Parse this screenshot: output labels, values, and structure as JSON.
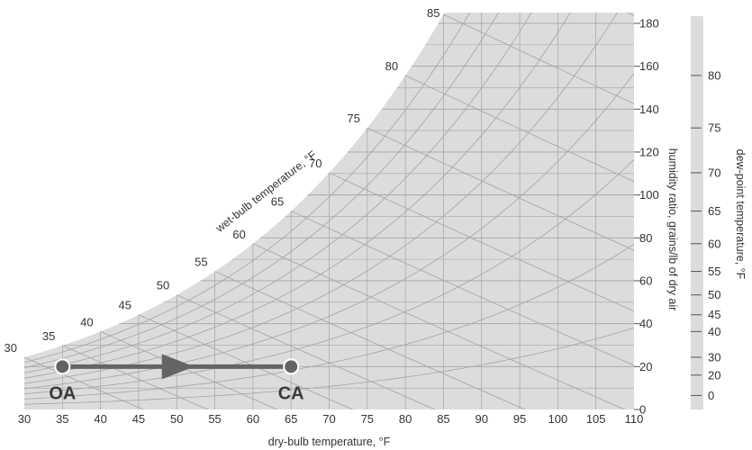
{
  "chart_data": {
    "type": "psychrometric",
    "xlabel": "dry-bulb temperature, °F",
    "ylabel_right": "humidity ratio, grains/lb of dry air",
    "ylabel_dew": "dew-point temperature, °F",
    "curve_label": "wet-bulb temperature, °F",
    "x_ticks": [
      30,
      35,
      40,
      45,
      50,
      55,
      60,
      65,
      70,
      75,
      80,
      85,
      90,
      95,
      100,
      105,
      110
    ],
    "xlim": [
      30,
      110
    ],
    "y_ticks": [
      0,
      20,
      40,
      60,
      80,
      100,
      120,
      140,
      160,
      180
    ],
    "ylim": [
      0,
      185
    ],
    "dew_point_ticks": [
      0,
      20,
      30,
      40,
      45,
      50,
      55,
      60,
      65,
      70,
      75,
      80
    ],
    "wet_bulb_labels": [
      30,
      35,
      40,
      45,
      50,
      55,
      60,
      65,
      70,
      75,
      80,
      85
    ],
    "process": {
      "points": [
        {
          "label": "OA",
          "dry_bulb": 35,
          "humidity_ratio": 20
        },
        {
          "label": "CA",
          "dry_bulb": 65,
          "humidity_ratio": 20
        }
      ]
    },
    "colors": {
      "background": "#dcdcde",
      "grid": "#a4a4a6",
      "arrow": "#646466",
      "text": "#333333"
    }
  }
}
